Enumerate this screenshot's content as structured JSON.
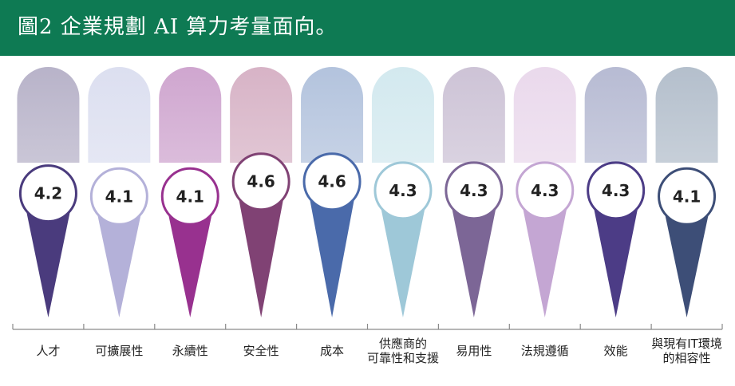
{
  "title": "圖2 企業規劃 AI 算力考量面向。",
  "chart_data": {
    "type": "bar",
    "title": "圖2 企業規劃 AI 算力考量面向。",
    "xlabel": "",
    "ylabel": "",
    "categories": [
      [
        "人才"
      ],
      [
        "可擴展性"
      ],
      [
        "永續性"
      ],
      [
        "安全性"
      ],
      [
        "成本"
      ],
      [
        "供應商的",
        "可靠性和支援"
      ],
      [
        "易用性"
      ],
      [
        "法規遵循"
      ],
      [
        "效能"
      ],
      [
        "與現有IT環境",
        "的相容性"
      ]
    ],
    "values": [
      4.2,
      4.1,
      4.1,
      4.6,
      4.6,
      4.3,
      4.3,
      4.3,
      4.3,
      4.1
    ],
    "value_labels": [
      "4.2",
      "4.1",
      "4.1",
      "4.6",
      "4.6",
      "4.3",
      "4.3",
      "4.3",
      "4.3",
      "4.1"
    ],
    "ylim": [
      4.0,
      4.7
    ],
    "grid": false,
    "legend": "none",
    "colors": {
      "banner": "#0e7a53",
      "pill": [
        "#b8b3c9",
        "#dcdff0",
        "#cfa6cf",
        "#d7b3c6",
        "#b3c3dd",
        "#d3e9ef",
        "#cdc3d6",
        "#ead9ec",
        "#b7bbd3",
        "#b4bfcc"
      ],
      "spike": [
        "#4a3b7d",
        "#b4b1d9",
        "#98318f",
        "#804274",
        "#4a6aaa",
        "#9ec8d8",
        "#7c6696",
        "#c4a6d3",
        "#4c3c86",
        "#3d4e77"
      ],
      "ring": [
        "#4a3b7d",
        "#b4b1d9",
        "#98318f",
        "#804274",
        "#4a6aaa",
        "#9ec8d8",
        "#7c6696",
        "#c4a6d3",
        "#4c3c86",
        "#3d4e77"
      ]
    }
  }
}
